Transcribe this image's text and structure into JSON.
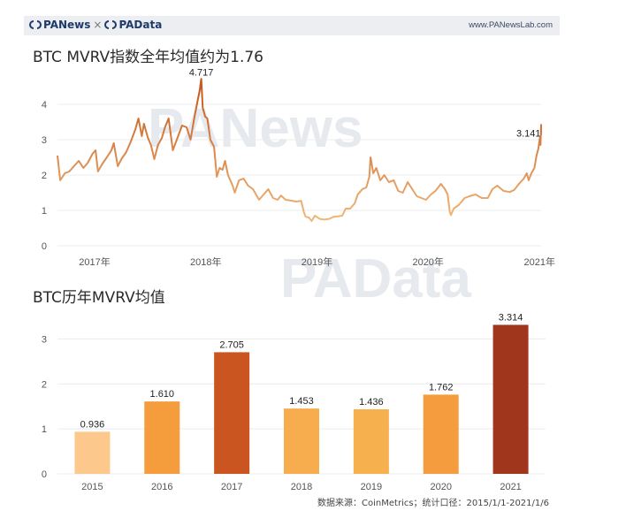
{
  "header": {
    "brand_left": "PANews",
    "brand_sep": "×",
    "brand_right": "PAData",
    "url": "www.PANewsLab.com"
  },
  "watermarks": [
    "PANews",
    "PAData"
  ],
  "chart_data": [
    {
      "type": "line",
      "title": "BTC MVRV指数全年均值约为1.76",
      "xlabel": "",
      "ylabel": "",
      "x_ticks": [
        "2017年",
        "2018年",
        "2019年",
        "2020年",
        "2021年"
      ],
      "x_range": [
        "2016-09-01",
        "2021-01-06"
      ],
      "ylim": [
        0,
        4.8
      ],
      "y_ticks": [
        0,
        1,
        2,
        3,
        4
      ],
      "gradient_colors": [
        "#f9c98a",
        "#c0521a"
      ],
      "grid": true,
      "annotations": [
        {
          "x": "2017-12-17",
          "y": 4.717,
          "label": "4.717"
        },
        {
          "x": "2021-01-06",
          "y": 3.141,
          "label": "3.141"
        }
      ],
      "series": [
        {
          "points": [
            [
              "2016-09-01",
              2.55
            ],
            [
              "2016-09-10",
              1.85
            ],
            [
              "2016-09-25",
              2.05
            ],
            [
              "2016-10-10",
              2.1
            ],
            [
              "2016-10-25",
              2.25
            ],
            [
              "2016-11-10",
              2.4
            ],
            [
              "2016-11-25",
              2.2
            ],
            [
              "2016-12-10",
              2.35
            ],
            [
              "2016-12-25",
              2.6
            ],
            [
              "2017-01-04",
              2.7
            ],
            [
              "2017-01-12",
              2.1
            ],
            [
              "2017-01-25",
              2.3
            ],
            [
              "2017-02-10",
              2.5
            ],
            [
              "2017-02-25",
              2.7
            ],
            [
              "2017-03-05",
              2.9
            ],
            [
              "2017-03-18",
              2.25
            ],
            [
              "2017-03-30",
              2.45
            ],
            [
              "2017-04-15",
              2.65
            ],
            [
              "2017-04-30",
              2.95
            ],
            [
              "2017-05-15",
              3.3
            ],
            [
              "2017-05-25",
              3.6
            ],
            [
              "2017-06-05",
              3.1
            ],
            [
              "2017-06-12",
              3.45
            ],
            [
              "2017-06-25",
              3.05
            ],
            [
              "2017-07-05",
              2.85
            ],
            [
              "2017-07-16",
              2.45
            ],
            [
              "2017-07-28",
              2.85
            ],
            [
              "2017-08-10",
              3.05
            ],
            [
              "2017-08-20",
              3.35
            ],
            [
              "2017-09-01",
              3.6
            ],
            [
              "2017-09-15",
              2.7
            ],
            [
              "2017-09-30",
              3.05
            ],
            [
              "2017-10-15",
              3.4
            ],
            [
              "2017-10-30",
              3.35
            ],
            [
              "2017-11-12",
              3.0
            ],
            [
              "2017-11-25",
              3.65
            ],
            [
              "2017-12-05",
              4.1
            ],
            [
              "2017-12-12",
              4.4
            ],
            [
              "2017-12-17",
              4.717
            ],
            [
              "2017-12-22",
              3.9
            ],
            [
              "2017-12-30",
              3.65
            ],
            [
              "2018-01-06",
              3.6
            ],
            [
              "2018-01-16",
              3.0
            ],
            [
              "2018-01-28",
              2.8
            ],
            [
              "2018-02-06",
              1.95
            ],
            [
              "2018-02-15",
              2.2
            ],
            [
              "2018-02-25",
              2.15
            ],
            [
              "2018-03-05",
              2.4
            ],
            [
              "2018-03-15",
              2.0
            ],
            [
              "2018-03-30",
              1.7
            ],
            [
              "2018-04-06",
              1.5
            ],
            [
              "2018-04-20",
              1.85
            ],
            [
              "2018-05-05",
              1.9
            ],
            [
              "2018-05-20",
              1.7
            ],
            [
              "2018-06-05",
              1.6
            ],
            [
              "2018-06-25",
              1.3
            ],
            [
              "2018-07-10",
              1.45
            ],
            [
              "2018-07-25",
              1.6
            ],
            [
              "2018-08-10",
              1.35
            ],
            [
              "2018-08-25",
              1.3
            ],
            [
              "2018-09-05",
              1.42
            ],
            [
              "2018-09-20",
              1.3
            ],
            [
              "2018-10-05",
              1.28
            ],
            [
              "2018-10-25",
              1.25
            ],
            [
              "2018-11-10",
              1.27
            ],
            [
              "2018-11-19",
              0.95
            ],
            [
              "2018-11-25",
              0.82
            ],
            [
              "2018-12-05",
              0.8
            ],
            [
              "2018-12-15",
              0.7
            ],
            [
              "2018-12-25",
              0.85
            ],
            [
              "2019-01-10",
              0.76
            ],
            [
              "2019-01-25",
              0.74
            ],
            [
              "2019-02-10",
              0.76
            ],
            [
              "2019-02-25",
              0.82
            ],
            [
              "2019-03-10",
              0.83
            ],
            [
              "2019-03-25",
              0.85
            ],
            [
              "2019-04-05",
              1.05
            ],
            [
              "2019-04-20",
              1.05
            ],
            [
              "2019-05-05",
              1.2
            ],
            [
              "2019-05-15",
              1.45
            ],
            [
              "2019-05-30",
              1.6
            ],
            [
              "2019-06-12",
              1.65
            ],
            [
              "2019-06-22",
              1.95
            ],
            [
              "2019-06-26",
              2.5
            ],
            [
              "2019-07-05",
              2.05
            ],
            [
              "2019-07-15",
              2.2
            ],
            [
              "2019-07-28",
              1.85
            ],
            [
              "2019-08-10",
              2.0
            ],
            [
              "2019-08-25",
              1.8
            ],
            [
              "2019-09-10",
              1.85
            ],
            [
              "2019-09-25",
              1.55
            ],
            [
              "2019-10-10",
              1.5
            ],
            [
              "2019-10-26",
              1.8
            ],
            [
              "2019-11-10",
              1.6
            ],
            [
              "2019-11-25",
              1.4
            ],
            [
              "2019-12-10",
              1.35
            ],
            [
              "2019-12-25",
              1.3
            ],
            [
              "2020-01-10",
              1.45
            ],
            [
              "2020-01-25",
              1.55
            ],
            [
              "2020-02-12",
              1.75
            ],
            [
              "2020-02-25",
              1.6
            ],
            [
              "2020-03-05",
              1.45
            ],
            [
              "2020-03-12",
              0.95
            ],
            [
              "2020-03-16",
              0.87
            ],
            [
              "2020-03-25",
              1.05
            ],
            [
              "2020-04-10",
              1.15
            ],
            [
              "2020-04-30",
              1.35
            ],
            [
              "2020-05-15",
              1.4
            ],
            [
              "2020-06-05",
              1.45
            ],
            [
              "2020-06-25",
              1.35
            ],
            [
              "2020-07-15",
              1.35
            ],
            [
              "2020-07-30",
              1.6
            ],
            [
              "2020-08-15",
              1.7
            ],
            [
              "2020-09-05",
              1.55
            ],
            [
              "2020-09-25",
              1.52
            ],
            [
              "2020-10-10",
              1.58
            ],
            [
              "2020-10-25",
              1.75
            ],
            [
              "2020-11-10",
              1.9
            ],
            [
              "2020-11-20",
              2.05
            ],
            [
              "2020-11-26",
              1.85
            ],
            [
              "2020-12-05",
              2.05
            ],
            [
              "2020-12-15",
              2.2
            ],
            [
              "2020-12-22",
              2.55
            ],
            [
              "2020-12-28",
              2.75
            ],
            [
              "2021-01-02",
              3.05
            ],
            [
              "2021-01-04",
              2.85
            ],
            [
              "2021-01-06",
              3.42
            ],
            [
              "2021-01-06",
              3.141
            ]
          ]
        }
      ]
    },
    {
      "type": "bar",
      "title": "BTC历年MVRV均值",
      "xlabel": "",
      "ylabel": "",
      "ylim": [
        0,
        3.5
      ],
      "y_ticks": [
        0,
        1,
        2,
        3
      ],
      "grid": true,
      "categories": [
        "2015",
        "2016",
        "2017",
        "2018",
        "2019",
        "2020",
        "2021"
      ],
      "values": [
        0.936,
        1.61,
        2.705,
        1.453,
        1.436,
        1.762,
        3.314
      ],
      "value_labels": [
        "0.936",
        "1.610",
        "2.705",
        "1.453",
        "1.436",
        "1.762",
        "3.314"
      ],
      "colors": [
        "#fdc88c",
        "#f59c3c",
        "#cb5520",
        "#f7ad4e",
        "#f6b04e",
        "#f59d3e",
        "#a0361c"
      ]
    }
  ],
  "source": "数据来源：CoinMetrics；统计口径：2015/1/1-2021/1/6"
}
